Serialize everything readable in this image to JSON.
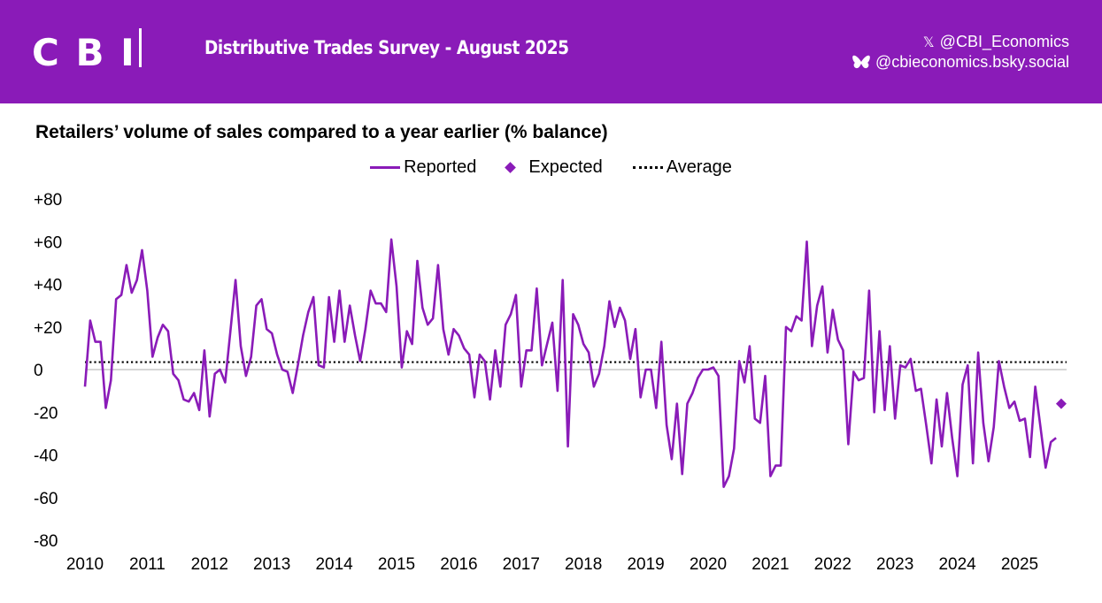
{
  "header": {
    "logo_text": "C B I",
    "title": "Distributive Trades Survey - August 2025",
    "x_handle": "@CBI_Economics",
    "bsky_handle": "@cbieconomics.bsky.social",
    "x_icon": "x-logo-icon",
    "bsky_icon": "butterfly-icon",
    "background_color": "#8a1bb8"
  },
  "chart_data": {
    "type": "line",
    "title": "Retailers’ volume of sales compared to a year earlier (% balance)",
    "legend": [
      "Reported",
      "Expected",
      "Average"
    ],
    "legend_position": "top-center",
    "series_color": "#8a1bb8",
    "ylim": [
      -80,
      80
    ],
    "yticks": [
      80,
      60,
      40,
      20,
      0,
      -20,
      -40,
      -60,
      -80
    ],
    "ytick_labels": [
      "+80",
      "+60",
      "+40",
      "+20",
      "0",
      "-20",
      "-40",
      "-60",
      "-80"
    ],
    "xlim": [
      "2010-01",
      "2025-09"
    ],
    "xtick_labels": [
      "2010",
      "2011",
      "2012",
      "2013",
      "2014",
      "2015",
      "2016",
      "2017",
      "2018",
      "2019",
      "2020",
      "2021",
      "2022",
      "2023",
      "2024",
      "2025"
    ],
    "grid": false,
    "series": [
      {
        "name": "Reported",
        "start": "2010-01",
        "frequency": "monthly",
        "values": [
          -8,
          23,
          13,
          13,
          -18,
          -5,
          33,
          35,
          49,
          36,
          42,
          56,
          37,
          6,
          15,
          21,
          18,
          -2,
          -5,
          -14,
          -15,
          -11,
          -19,
          9,
          -22,
          -2,
          0,
          -6,
          18,
          42,
          11,
          -3,
          6,
          30,
          33,
          19,
          17,
          7,
          0,
          -1,
          -11,
          2,
          16,
          27,
          34,
          2,
          1,
          34,
          13,
          37,
          13,
          30,
          16,
          4,
          19,
          37,
          31,
          31,
          27,
          61,
          39,
          1,
          18,
          12,
          51,
          29,
          21,
          24,
          49,
          19,
          7,
          19,
          16,
          10,
          7,
          -13,
          7,
          4,
          -14,
          9,
          -8,
          21,
          26,
          35,
          -8,
          9,
          9,
          38,
          2,
          12,
          22,
          -10,
          42,
          -36,
          26,
          21,
          12,
          8,
          -8,
          -2,
          11,
          32,
          20,
          29,
          23,
          5,
          19,
          -13,
          0,
          0,
          -18,
          13,
          -26,
          -42,
          -16,
          -49,
          -16,
          -11,
          -4,
          0,
          0,
          1,
          -3,
          -55,
          -50,
          -37,
          4,
          -6,
          11,
          -23,
          -25,
          -3,
          -50,
          -45,
          -45,
          20,
          18,
          25,
          23,
          60,
          11,
          30,
          39,
          8,
          28,
          14,
          9,
          -35,
          -1,
          -5,
          -4,
          37,
          -20,
          18,
          -19,
          11,
          -23,
          2,
          1,
          5,
          -10,
          -9,
          -26,
          -44,
          -14,
          -36,
          -11,
          -32,
          -50,
          -7,
          2,
          -44,
          8,
          -25,
          -43,
          -27,
          4,
          -8,
          -18,
          -15,
          -24,
          -23,
          -41,
          -8,
          -27,
          -46,
          -34,
          -32
        ]
      },
      {
        "name": "Expected",
        "x": [
          "2025-09"
        ],
        "values": [
          -16
        ]
      },
      {
        "name": "Average",
        "values": [
          3.5
        ]
      }
    ]
  }
}
